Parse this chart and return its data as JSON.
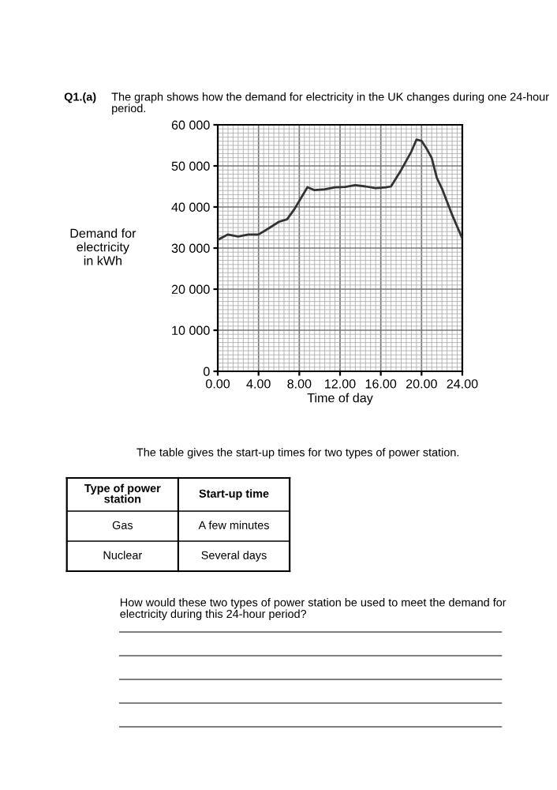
{
  "chart_data": {
    "type": "line",
    "xlabel": "Time of day",
    "ylabel": "Demand for\nelectricity\nin kWh",
    "x": [
      0,
      1,
      2,
      3,
      4,
      5,
      6,
      6.8,
      7.5,
      8.2,
      8.8,
      9.5,
      10.5,
      11.5,
      12.5,
      13.5,
      14.5,
      15.5,
      16.5,
      17,
      18,
      19,
      19.5,
      20,
      20.5,
      21,
      21.5,
      22,
      23,
      24
    ],
    "series": [
      {
        "color": "#333333",
        "values": [
          32000,
          33300,
          32800,
          33300,
          33300,
          34800,
          36400,
          37000,
          39400,
          42300,
          44800,
          44100,
          44300,
          44800,
          44900,
          45300,
          45000,
          44600,
          44800,
          45000,
          49000,
          53500,
          56400,
          56100,
          54200,
          51900,
          47100,
          44500,
          38100,
          32300
        ]
      }
    ],
    "xlim": [
      0,
      24
    ],
    "ylim": [
      0,
      60000
    ],
    "xticks": [
      {
        "value": 0,
        "label": "0.00"
      },
      {
        "value": 4,
        "label": "4.00"
      },
      {
        "value": 8,
        "label": "8.00"
      },
      {
        "value": 12,
        "label": "12.00"
      },
      {
        "value": 16,
        "label": "16.00"
      },
      {
        "value": 20,
        "label": "20.00"
      },
      {
        "value": 24,
        "label": "24.00"
      }
    ],
    "yticks": [
      0,
      {
        "value": 10000,
        "label": "10 000"
      },
      {
        "value": 20000,
        "label": "20 000"
      },
      {
        "value": 30000,
        "label": "30 000"
      },
      {
        "value": 40000,
        "label": "40 000"
      },
      {
        "value": 50000,
        "label": "50 000"
      },
      {
        "value": 60000,
        "label": "60 000"
      }
    ],
    "grid": true,
    "legend": false,
    "marker": "none",
    "line_style": "solid",
    "annotations": [
      "Q1.(a)",
      "The graph shows how the demand for electricity in the UK changes during one 24-hour\nperiod.",
      "The table gives the start-up times for two types of power station.",
      "Type of power\nstation",
      "Start-up time",
      "Gas",
      "A few minutes",
      "Nuclear",
      "Several days",
      "How would these two types of power station be used to meet the demand for\nelectricity during this 24-hour period?"
    ]
  }
}
